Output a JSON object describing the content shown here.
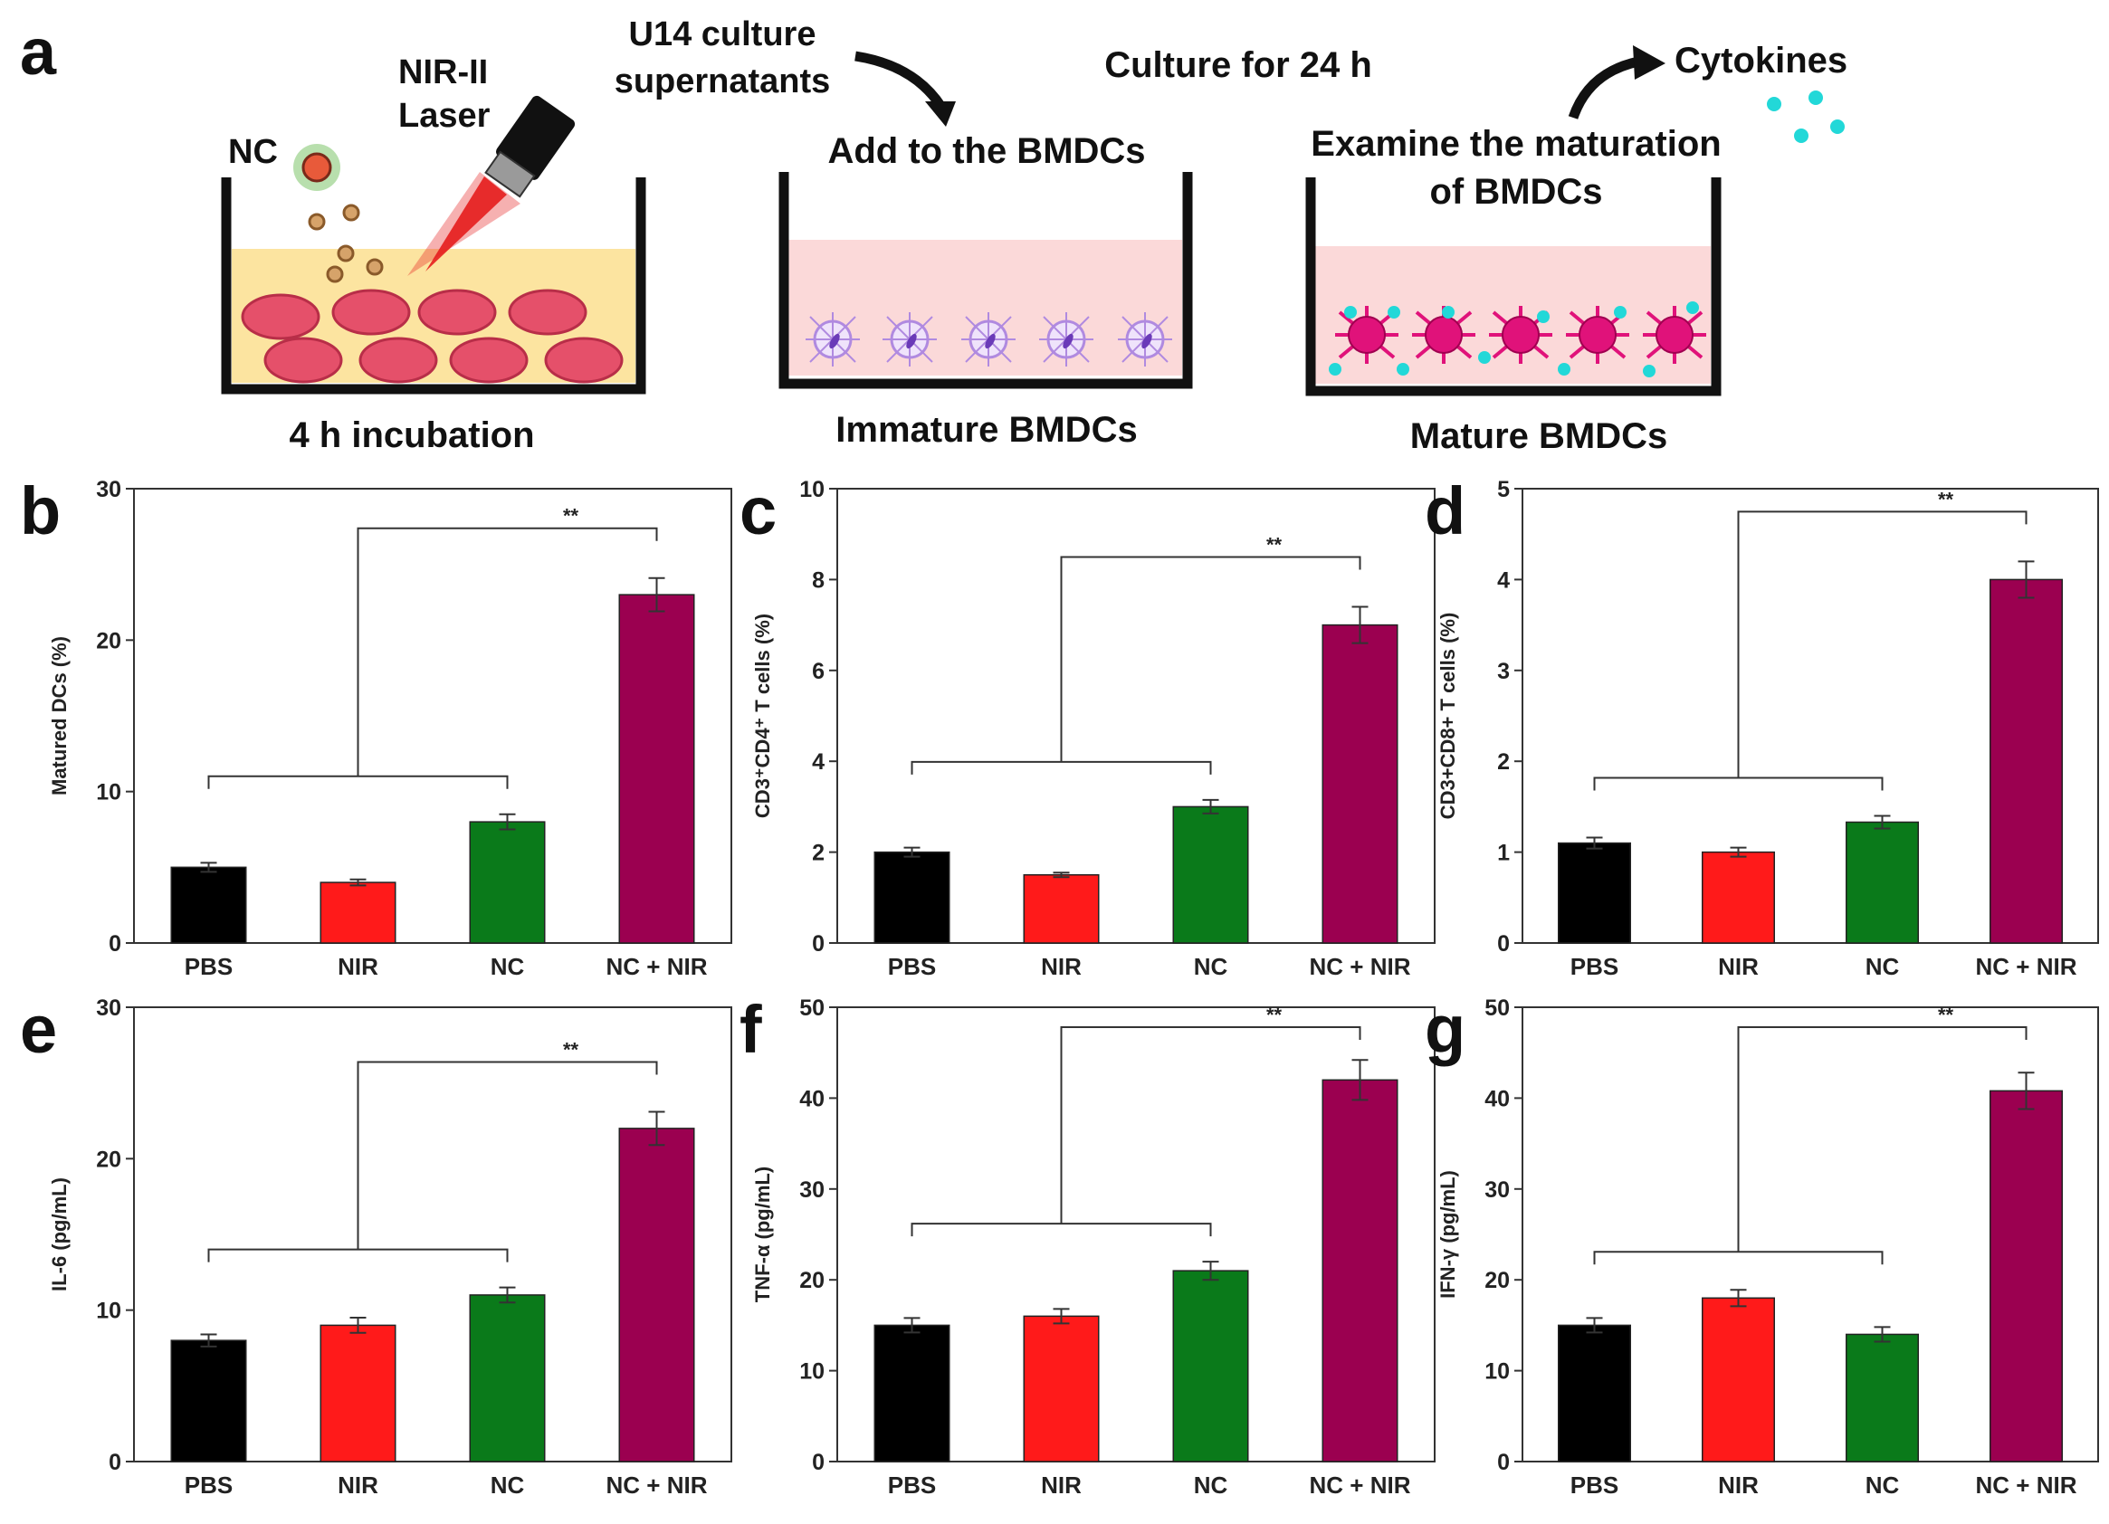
{
  "scheme": {
    "panel_letter": "a",
    "nc_label": "NC",
    "laser_line1": "NIR-II",
    "laser_line2": "Laser",
    "step1_caption": "4 h incubation",
    "supernatant_line1": "U14 culture",
    "supernatant_line2": "supernatants",
    "add_label": "Add to the BMDCs",
    "step2_caption": "Immature BMDCs",
    "culture_label": "Culture for 24 h",
    "examine_line1": "Examine the maturation",
    "examine_line2": "of BMDCs",
    "cytokines_label": "Cytokines",
    "step3_caption": "Mature BMDCs"
  },
  "colors": {
    "pbs": "#000000",
    "nir": "#ff1a1a",
    "nc": "#0a7a1a",
    "nc_nir": "#9b0050",
    "medium_yellow": "#fce4a0",
    "medium_pink": "#fbd9d9",
    "tumor_cell": "#e5506a",
    "laser": "#e61e1e",
    "immature_dc": "#b08ae0",
    "mature_dc": "#e0127a",
    "cytokine": "#22d8d8"
  },
  "chart_data": [
    {
      "panel": "b",
      "type": "bar",
      "categories": [
        "PBS",
        "NIR",
        "NC",
        "NC + NIR"
      ],
      "values": [
        5,
        4,
        8,
        23
      ],
      "errors": [
        0.3,
        0.2,
        0.5,
        1.1
      ],
      "ylabel": "Matured DCs (%)",
      "ylim": [
        0,
        30
      ],
      "yticks": [
        0,
        10,
        20,
        30
      ],
      "ytick_labels": [
        "0",
        "10",
        "20",
        "30"
      ],
      "significance": "**"
    },
    {
      "panel": "c",
      "type": "bar",
      "categories": [
        "PBS",
        "NIR",
        "NC",
        "NC + NIR"
      ],
      "values": [
        2,
        1.5,
        3,
        7
      ],
      "errors": [
        0.1,
        0.05,
        0.15,
        0.4
      ],
      "ylabel": "CD3⁺CD4⁺ T cells (%)",
      "ylim": [
        0,
        10
      ],
      "yticks": [
        0,
        2,
        4,
        6,
        8,
        10
      ],
      "ytick_labels": [
        "0",
        "2",
        "4",
        "6",
        "8",
        "10"
      ],
      "significance": "**"
    },
    {
      "panel": "d",
      "type": "bar",
      "categories": [
        "PBS",
        "NIR",
        "NC",
        "NC + NIR"
      ],
      "values": [
        1.1,
        1.0,
        1.33,
        4.0
      ],
      "errors": [
        0.06,
        0.05,
        0.07,
        0.2
      ],
      "ylabel": "CD3+CD8+ T cells (%)",
      "ylim": [
        0,
        5
      ],
      "yticks": [
        0,
        1,
        2,
        3,
        4,
        5
      ],
      "ytick_labels": [
        "0",
        "1",
        "2",
        "3",
        "4",
        "5"
      ],
      "significance": "**"
    },
    {
      "panel": "e",
      "type": "bar",
      "categories": [
        "PBS",
        "NIR",
        "NC",
        "NC + NIR"
      ],
      "values": [
        8,
        9,
        11,
        22
      ],
      "errors": [
        0.4,
        0.5,
        0.5,
        1.1
      ],
      "ylabel": "IL-6 (pg/mL)",
      "ylim": [
        0,
        30
      ],
      "yticks": [
        0,
        10,
        20,
        30
      ],
      "ytick_labels": [
        "0",
        "10",
        "20",
        "30"
      ],
      "significance": "**"
    },
    {
      "panel": "f",
      "type": "bar",
      "categories": [
        "PBS",
        "NIR",
        "NC",
        "NC + NIR"
      ],
      "values": [
        15,
        16,
        21,
        42
      ],
      "errors": [
        0.8,
        0.8,
        1.0,
        2.2
      ],
      "ylabel": "TNF-α (pg/mL)",
      "ylim": [
        0,
        50
      ],
      "yticks": [
        0,
        10,
        20,
        30,
        40,
        50
      ],
      "ytick_labels": [
        "0",
        "10",
        "20",
        "30",
        "40",
        "50"
      ],
      "significance": "**"
    },
    {
      "panel": "g",
      "type": "bar",
      "categories": [
        "PBS",
        "NIR",
        "NC",
        "NC + NIR"
      ],
      "values": [
        15,
        18,
        14,
        40.8
      ],
      "errors": [
        0.8,
        0.9,
        0.8,
        2.0
      ],
      "ylabel": "IFN-γ (pg/mL)",
      "ylim": [
        0,
        50
      ],
      "yticks": [
        0,
        10,
        20,
        30,
        40,
        50
      ],
      "ytick_labels": [
        "0",
        "10",
        "20",
        "30",
        "40",
        "50"
      ],
      "significance": "**"
    }
  ]
}
